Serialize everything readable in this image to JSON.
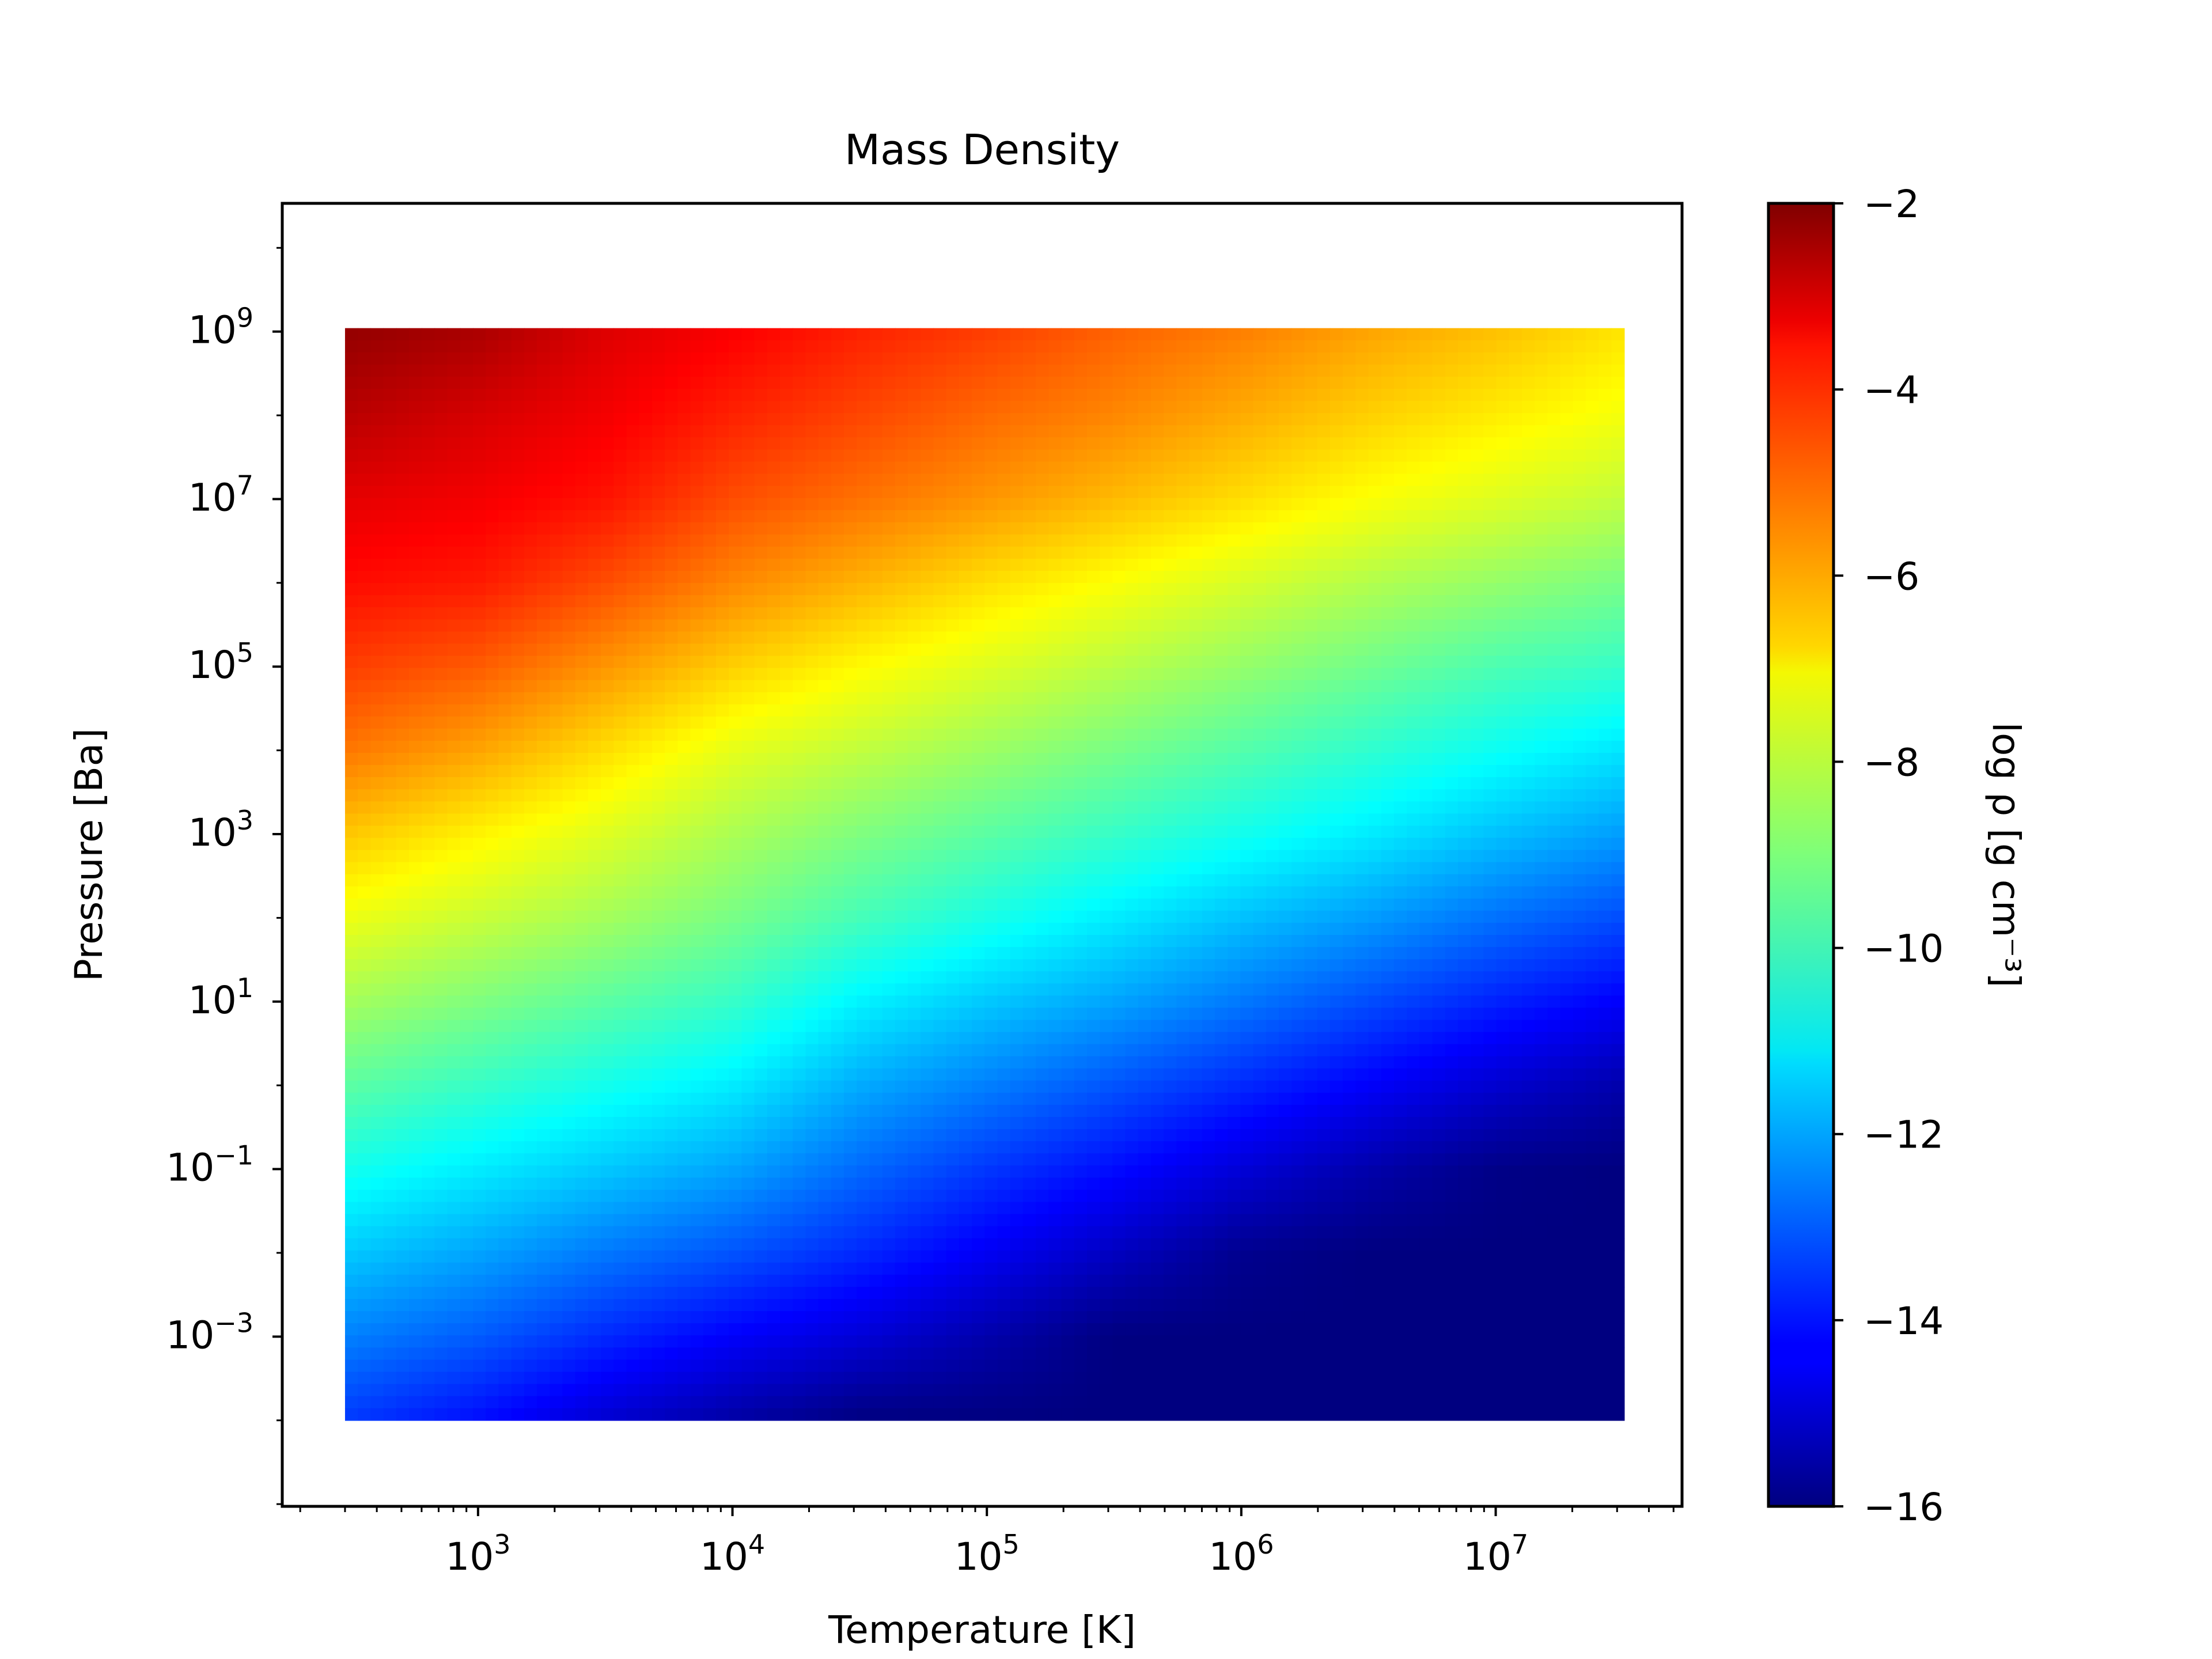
{
  "chart_data": {
    "type": "heatmap",
    "title": "Mass Density",
    "xlabel": "Temperature [K]",
    "ylabel": "Pressure [Ba]",
    "xscale": "log",
    "yscale": "log",
    "xlim": [
      170,
      54000000
    ],
    "ylim": [
      9.4e-06,
      34000000000
    ],
    "data_extent": {
      "x": [
        300,
        32000000
      ],
      "y": [
        0.0001,
        1100000000
      ]
    },
    "x_ticks": [
      {
        "value": 1000,
        "base": "10",
        "exp": "3"
      },
      {
        "value": 10000,
        "base": "10",
        "exp": "4"
      },
      {
        "value": 100000,
        "base": "10",
        "exp": "5"
      },
      {
        "value": 1000000,
        "base": "10",
        "exp": "6"
      },
      {
        "value": 10000000,
        "base": "10",
        "exp": "7"
      }
    ],
    "y_ticks": [
      {
        "value": 0.001,
        "base": "10",
        "exp": "−3"
      },
      {
        "value": 0.1,
        "base": "10",
        "exp": "−1"
      },
      {
        "value": 10,
        "base": "10",
        "exp": "1"
      },
      {
        "value": 1000,
        "base": "10",
        "exp": "3"
      },
      {
        "value": 100000,
        "base": "10",
        "exp": "5"
      },
      {
        "value": 10000000,
        "base": "10",
        "exp": "7"
      },
      {
        "value": 1000000000,
        "base": "10",
        "exp": "9"
      }
    ],
    "colorbar": {
      "label": "log ρ [g cm⁻³]",
      "colormap": "jet",
      "range": [
        -16,
        -2
      ],
      "ticks": [
        {
          "value": -2,
          "label": "−2"
        },
        {
          "value": -4,
          "label": "−4"
        },
        {
          "value": -6,
          "label": "−6"
        },
        {
          "value": -8,
          "label": "−8"
        },
        {
          "value": -10,
          "label": "−10"
        },
        {
          "value": -12,
          "label": "−12"
        },
        {
          "value": -14,
          "label": "−14"
        },
        {
          "value": -16,
          "label": "−16"
        }
      ]
    },
    "grid": false,
    "sampled_log_rho": {
      "log_T": [
        2.5,
        3.0,
        3.5,
        4.0,
        4.5,
        5.0,
        5.5,
        6.0,
        6.5,
        7.0,
        7.5
      ],
      "log_P": [
        9,
        8,
        7,
        6,
        5,
        4,
        3,
        2,
        1,
        0,
        -1,
        -2,
        -3,
        -4
      ],
      "values": [
        [
          -2.3,
          -2.6,
          -3.3,
          -3.7,
          -4.2,
          -4.6,
          -5.1,
          -5.5,
          -6.0,
          -6.4,
          -6.9
        ],
        [
          -2.8,
          -3.2,
          -3.6,
          -4.2,
          -4.7,
          -5.2,
          -5.6,
          -6.1,
          -6.6,
          -7.0,
          -7.4
        ],
        [
          -3.4,
          -3.6,
          -4.0,
          -4.8,
          -5.3,
          -5.8,
          -6.3,
          -6.8,
          -7.3,
          -7.7,
          -8.1
        ],
        [
          -3.9,
          -4.1,
          -4.8,
          -5.6,
          -6.2,
          -6.8,
          -7.3,
          -7.8,
          -8.3,
          -8.7,
          -9.1
        ],
        [
          -4.6,
          -5.0,
          -5.8,
          -6.6,
          -7.2,
          -7.7,
          -8.2,
          -8.7,
          -9.2,
          -9.7,
          -10.0
        ],
        [
          -5.4,
          -6.0,
          -6.8,
          -7.6,
          -8.1,
          -8.6,
          -9.1,
          -9.6,
          -10.1,
          -10.6,
          -11.1
        ],
        [
          -6.5,
          -7.1,
          -7.7,
          -8.4,
          -9.0,
          -9.5,
          -10.0,
          -10.5,
          -11.0,
          -11.6,
          -12.1
        ],
        [
          -7.5,
          -8.0,
          -8.5,
          -9.1,
          -9.8,
          -10.4,
          -11.0,
          -11.6,
          -12.1,
          -12.7,
          -13.2
        ],
        [
          -8.5,
          -9.0,
          -9.5,
          -10.0,
          -10.9,
          -11.5,
          -12.0,
          -12.6,
          -13.2,
          -13.8,
          -14.3
        ],
        [
          -9.5,
          -10.0,
          -10.5,
          -11.0,
          -11.9,
          -12.5,
          -13.1,
          -13.7,
          -14.3,
          -14.9,
          -15.4
        ],
        [
          -10.5,
          -11.0,
          -11.5,
          -12.0,
          -12.8,
          -13.5,
          -14.1,
          -14.8,
          -15.4,
          -15.9,
          -16.0
        ],
        [
          -11.5,
          -12.0,
          -12.6,
          -13.1,
          -13.7,
          -14.4,
          -15.1,
          -15.8,
          -16.0,
          -16.0,
          -16.0
        ],
        [
          -12.5,
          -13.0,
          -13.7,
          -14.3,
          -14.8,
          -15.4,
          -16.0,
          -16.0,
          -16.0,
          -16.0,
          -16.0
        ],
        [
          -13.5,
          -14.1,
          -14.9,
          -15.5,
          -16.0,
          -16.0,
          -16.0,
          -16.0,
          -16.0,
          -16.0,
          -16.0
        ]
      ]
    }
  }
}
